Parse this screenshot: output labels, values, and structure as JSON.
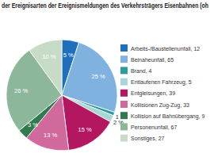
{
  "chart_data": {
    "type": "pie",
    "title": "der Ereignisarten der Ereignismeldungen des Verkehrsträgers Eisenbahnen (oh",
    "categories": [
      "Arbeits-/Baustellenunfall, 12",
      "Beinaheunfall, 65",
      "Brand, 4",
      "Entlaufenen Fahrzeug, 5",
      "Entgleisungen, 39",
      "Kollisionen Zug-Zug, 33",
      "Kollision auf Bahnübergang, 9",
      "Personenunfall, 67",
      "Sonstiges, 27"
    ],
    "values": [
      5,
      25,
      1,
      2,
      15,
      13,
      3,
      26,
      10
    ],
    "value_labels": [
      "5 %",
      "25 %",
      "1 %",
      "2 %",
      "15 %",
      "13 %",
      "3 %",
      "26 %",
      "10 %"
    ],
    "colors": [
      "#1f6fbd",
      "#7fb2df",
      "#2b9b9c",
      "#a9d6d6",
      "#b3175f",
      "#d16a9c",
      "#2f7a4e",
      "#8db79a",
      "#c7dcc6"
    ],
    "data_labels": true,
    "legend": "right"
  }
}
